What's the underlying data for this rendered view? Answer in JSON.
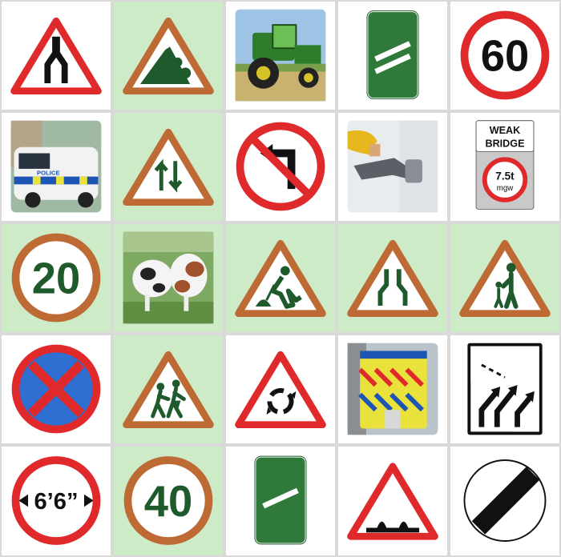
{
  "selected_color": "#cdebc7",
  "tiles": [
    {
      "icon": "road-narrows-left-sign-icon",
      "selected": false
    },
    {
      "icon": "falling-rocks-sign-icon",
      "selected": true
    },
    {
      "icon": "tractor-photo-icon",
      "selected": false
    },
    {
      "icon": "countdown-marker-two-bars-icon",
      "selected": false
    },
    {
      "icon": "speed-limit-sign-icon",
      "selected": false,
      "label": "60"
    },
    {
      "icon": "police-van-photo-icon",
      "selected": false,
      "label": "POLICE"
    },
    {
      "icon": "two-way-traffic-sign-icon",
      "selected": true
    },
    {
      "icon": "no-left-turn-sign-icon",
      "selected": false
    },
    {
      "icon": "fuel-pump-photo-icon",
      "selected": false
    },
    {
      "icon": "weak-bridge-sign-icon",
      "selected": false,
      "label": "WEAK",
      "label2": "BRIDGE",
      "weight": "7.5t",
      "unit": "mgw"
    },
    {
      "icon": "speed-limit-sign-icon",
      "selected": true,
      "label": "20"
    },
    {
      "icon": "cattle-photo-icon",
      "selected": true
    },
    {
      "icon": "road-works-sign-icon",
      "selected": true
    },
    {
      "icon": "road-narrows-both-sides-sign-icon",
      "selected": true
    },
    {
      "icon": "pedestrians-sign-icon",
      "selected": true
    },
    {
      "icon": "no-stopping-clearway-sign-icon",
      "selected": false
    },
    {
      "icon": "children-crossing-sign-icon",
      "selected": true
    },
    {
      "icon": "roundabout-sign-icon",
      "selected": false
    },
    {
      "icon": "ambulance-photo-icon",
      "selected": false
    },
    {
      "icon": "lane-merge-sign-icon",
      "selected": false
    },
    {
      "icon": "height-limit-sign-icon",
      "selected": false,
      "label": "6’6”"
    },
    {
      "icon": "speed-limit-sign-icon",
      "selected": true,
      "label": "40"
    },
    {
      "icon": "countdown-marker-one-bar-icon",
      "selected": false
    },
    {
      "icon": "uneven-road-sign-icon",
      "selected": false
    },
    {
      "icon": "national-speed-limit-sign-icon",
      "selected": false
    }
  ]
}
